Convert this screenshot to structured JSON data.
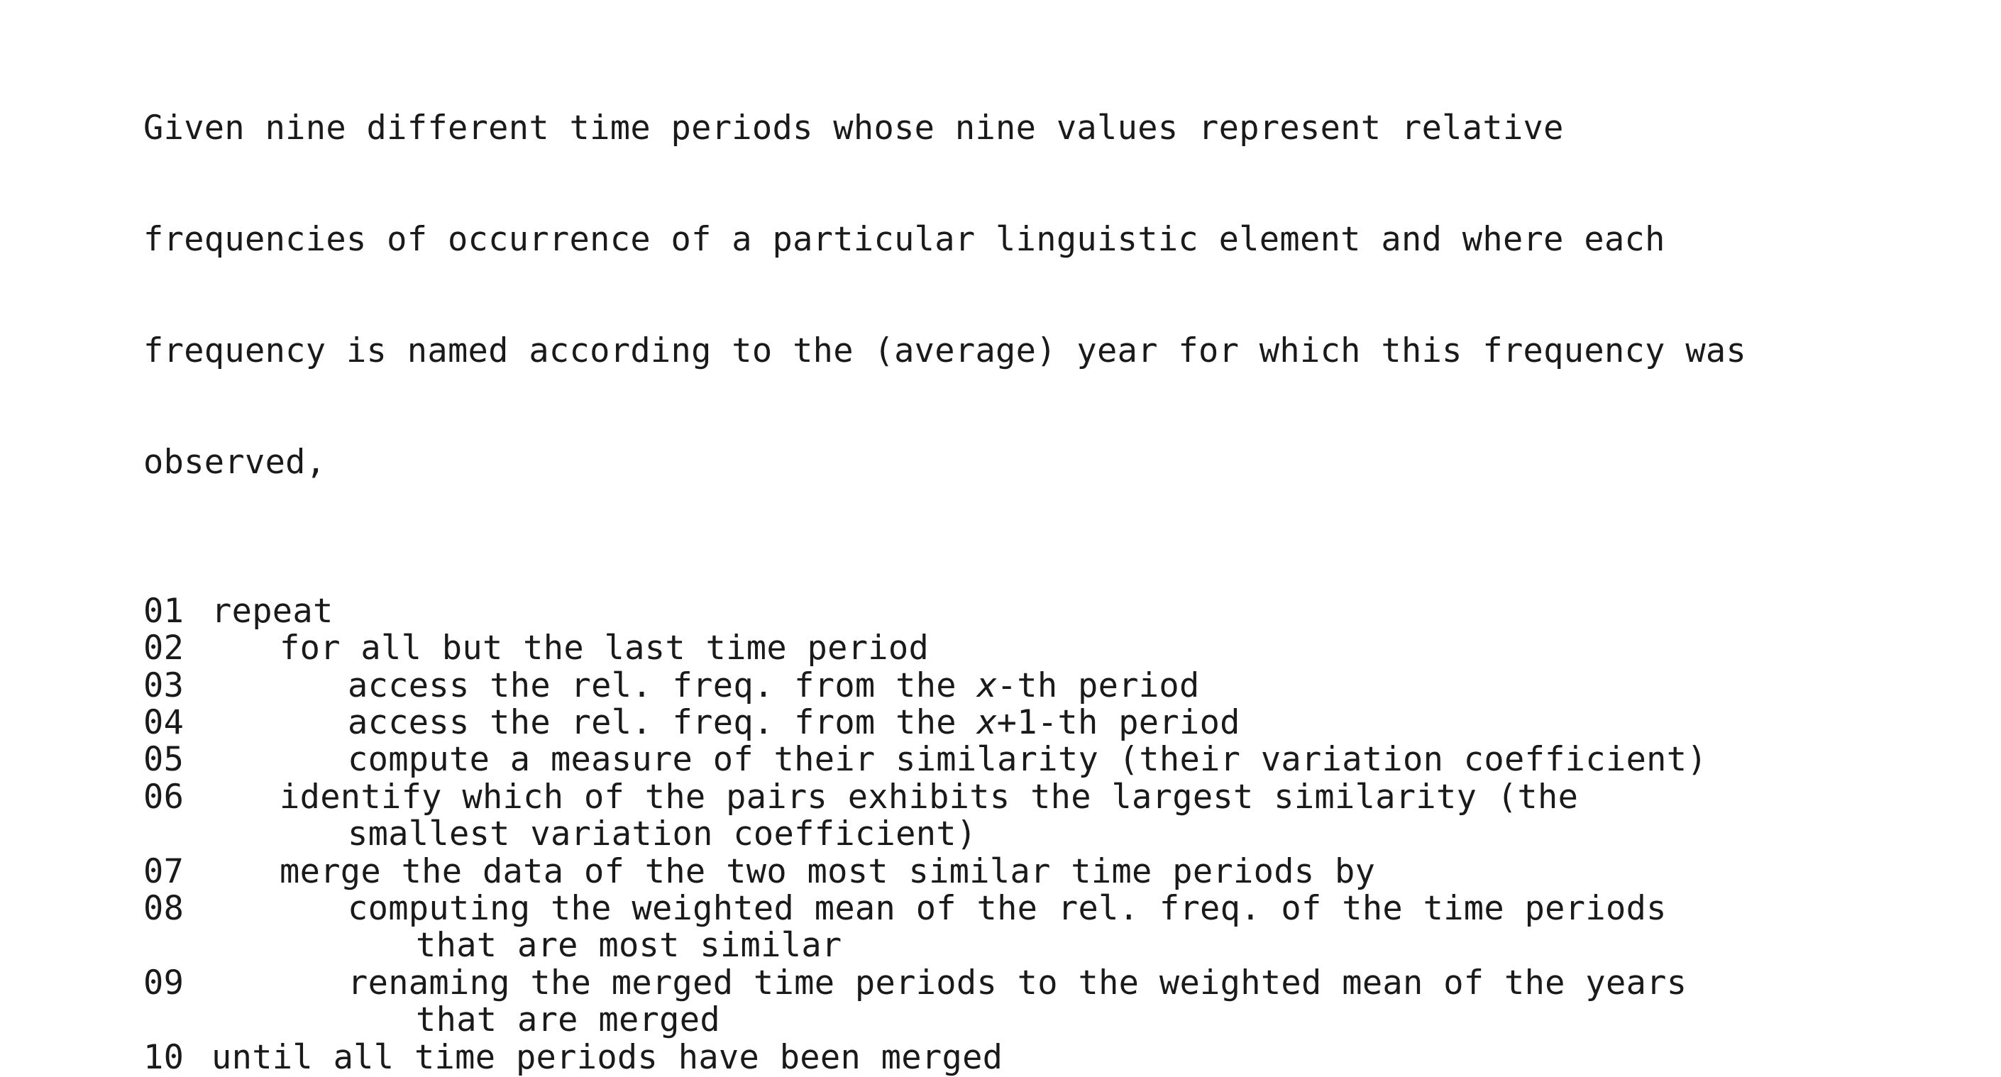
{
  "intro": [
    "Given nine different time periods whose nine values represent relative",
    "frequencies of occurrence of a particular linguistic element and where each",
    "frequency is named according to the (average) year for which this frequency was",
    "observed,"
  ],
  "steps": {
    "s01": {
      "num": "01",
      "text": "repeat"
    },
    "s02": {
      "num": "02",
      "text": "for all but the last time period"
    },
    "s03": {
      "num": "03",
      "pre": "access the rel. freq. from the ",
      "var": "x",
      "post": "-th period"
    },
    "s04": {
      "num": "04",
      "pre": "access the rel. freq. from the ",
      "var": "x",
      "post": "+1-th period"
    },
    "s05": {
      "num": "05",
      "text": "compute a measure of their similarity (their variation coefficient)"
    },
    "s06": {
      "num": "06",
      "text": "identify which of the pairs exhibits the largest similarity (the",
      "cont": "smallest variation coefficient)"
    },
    "s07": {
      "num": "07",
      "text": "merge the data of the two most similar time periods by"
    },
    "s08": {
      "num": "08",
      "text": "computing the weighted mean of the rel. freq. of the time periods",
      "cont": "that are most similar"
    },
    "s09": {
      "num": "09",
      "text": "renaming the merged time periods to the weighted mean of the years",
      "cont": "that are merged"
    },
    "s10": {
      "num": "10",
      "text": "until all time periods have been merged"
    }
  }
}
